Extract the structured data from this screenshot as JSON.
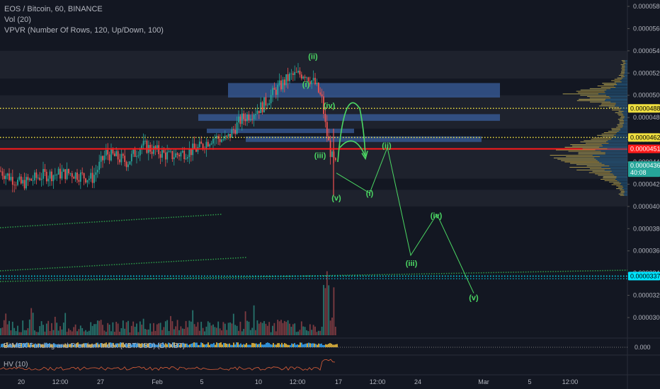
{
  "legend": {
    "symbol": "EOS / Bitcoin, 60, BINANCE",
    "vol": "Vol (20)",
    "vpvr": "VPVR (Number Of Rows, 120, Up/Down, 100)"
  },
  "panes": {
    "funding_label": "BitMEX Funding and Premium Index (XBT/USD) (D, XBT)",
    "funding_value": "0.000",
    "hv_label": "HV (10)"
  },
  "colors": {
    "background": "#131722",
    "grid_band": "#2a2e39",
    "up": "#26a69a",
    "down": "#ef5350",
    "vol": "#8a8a6a",
    "wave": "#4cd964",
    "red_line": "#ff1a1a",
    "yellow_line": "#f0e040",
    "cyan_line": "#00e5ff",
    "zone": "#3a5f9e"
  },
  "chart_data": {
    "type": "line",
    "y_axis": {
      "min": 2.9e-05,
      "max": 5.9e-05,
      "ticks": [
        "0.00005800",
        "0.00005600",
        "0.00005400",
        "0.00005200",
        "0.00005000",
        "0.00004800",
        "0.00004600",
        "0.00004400",
        "0.00004200",
        "0.00004000",
        "0.00003800",
        "0.00003600",
        "0.00003400",
        "0.00003200",
        "0.00003000"
      ]
    },
    "x_labels": [
      "20",
      "12:00",
      "27",
      "Feb",
      "5",
      "10",
      "12:00",
      "17",
      "12:00",
      "24",
      "Mar",
      "5",
      "12:00"
    ],
    "price_tags": [
      {
        "value": "0.00004882",
        "color": "#f0e040",
        "text_color": "#000000"
      },
      {
        "value": "0.00004620",
        "color": "#f0e040",
        "text_color": "#000000"
      },
      {
        "value": "0.00004518",
        "color": "#ff1a1a",
        "text_color": "#ffffff"
      },
      {
        "value": "0.00004367",
        "color": "#26a69a",
        "text_color": "#ffffff",
        "sub": "40:08"
      },
      {
        "value": "0.00003373",
        "color": "#00e5ff",
        "text_color": "#000000"
      }
    ],
    "horizontal_lines": [
      {
        "price": 4.882e-05,
        "color": "yellow",
        "style": "dotted"
      },
      {
        "price": 4.62e-05,
        "color": "yellow",
        "style": "dotted"
      },
      {
        "price": 4.518e-05,
        "color": "red",
        "style": "solid"
      },
      {
        "price": 3.373e-05,
        "color": "cyan",
        "style": "dotted"
      }
    ],
    "wave_labels": [
      {
        "text": "(ii)",
        "price": 5.35e-05
      },
      {
        "text": "(i)",
        "price": 5.1e-05
      },
      {
        "text": "(iv)",
        "price": 4.91e-05
      },
      {
        "text": "(iii)",
        "price": 4.46e-05
      },
      {
        "text": "(v)",
        "price": 4.08e-05
      },
      {
        "text": "(ii)",
        "price": 4.55e-05
      },
      {
        "text": "(i)",
        "price": 4.12e-05
      },
      {
        "text": "(iv)",
        "price": 3.92e-05
      },
      {
        "text": "(iii)",
        "price": 3.49e-05
      },
      {
        "text": "(v)",
        "price": 3.18e-05
      }
    ],
    "projection": {
      "description": "Elliott wave projection path",
      "points_price": [
        4.35e-05,
        4.55e-05,
        4.12e-05,
        4.55e-05,
        3.57e-05,
        3.94e-05,
        3.22e-05
      ]
    },
    "volume_profile": "up/down histogram on right side",
    "funding_value": "0.000"
  }
}
